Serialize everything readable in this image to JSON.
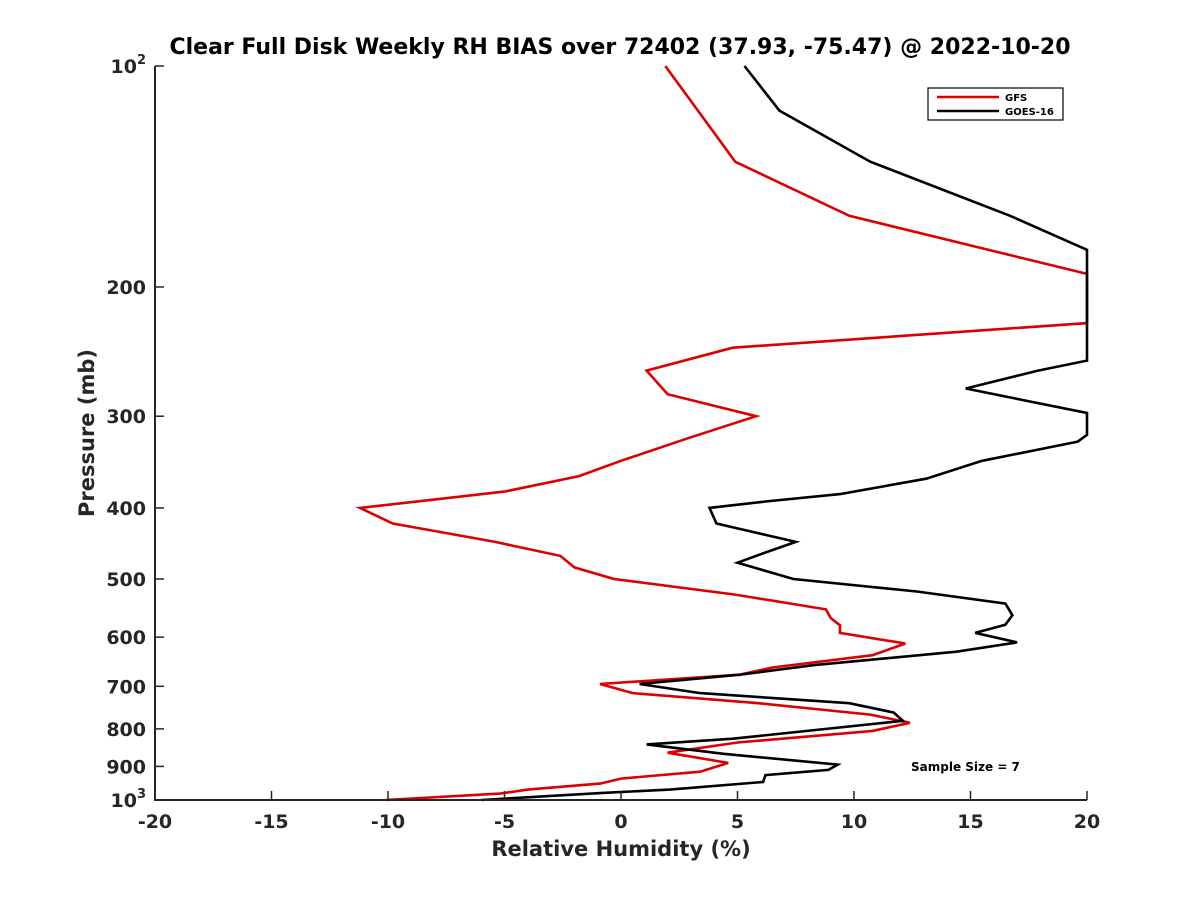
{
  "chart_data": {
    "type": "line",
    "title": "Clear Full Disk Weekly RH BIAS over 72402 (37.93, -75.47) @ 2022-10-20",
    "xlabel": "Relative Humidity (%)",
    "ylabel": "Pressure (mb)",
    "xlim": [
      -20,
      20
    ],
    "ylim": [
      100,
      1000
    ],
    "y_scale": "log",
    "y_reversed": true,
    "x_ticks": [
      "-20",
      "-15",
      "-10",
      "-5",
      "0",
      "5",
      "10",
      "15",
      "20"
    ],
    "y_ticks": [
      {
        "value": 100,
        "base": "10",
        "exp": "2"
      },
      {
        "value": 200,
        "label": "200"
      },
      {
        "value": 300,
        "label": "300"
      },
      {
        "value": 400,
        "label": "400"
      },
      {
        "value": 500,
        "label": "500"
      },
      {
        "value": 600,
        "label": "600"
      },
      {
        "value": 700,
        "label": "700"
      },
      {
        "value": 800,
        "label": "800"
      },
      {
        "value": 900,
        "label": "900"
      },
      {
        "value": 1000,
        "base": "10",
        "exp": "3"
      }
    ],
    "grid": false,
    "legend_position": "top-right",
    "annotation": "Sample Size = 7",
    "series": [
      {
        "name": "GFS",
        "color": "#dd0000",
        "points": [
          [
            1.9,
            100
          ],
          [
            3.3,
            115
          ],
          [
            4.9,
            135
          ],
          [
            9.8,
            160
          ],
          [
            20,
            192
          ],
          [
            20,
            224
          ],
          [
            4.8,
            242
          ],
          [
            1.1,
            260
          ],
          [
            2.0,
            280
          ],
          [
            5.8,
            300
          ],
          [
            2.8,
            322
          ],
          [
            0.0,
            345
          ],
          [
            -1.8,
            362
          ],
          [
            -5.0,
            380
          ],
          [
            -11.2,
            400
          ],
          [
            -9.8,
            420
          ],
          [
            -5.4,
            445
          ],
          [
            -2.6,
            465
          ],
          [
            -2.0,
            482
          ],
          [
            -0.3,
            500
          ],
          [
            4.9,
            525
          ],
          [
            8.8,
            550
          ],
          [
            9.0,
            565
          ],
          [
            9.4,
            578
          ],
          [
            9.4,
            592
          ],
          [
            12.2,
            612
          ],
          [
            10.8,
            635
          ],
          [
            6.5,
            660
          ],
          [
            5.1,
            675
          ],
          [
            -0.9,
            695
          ],
          [
            0.5,
            715
          ],
          [
            5.9,
            738
          ],
          [
            10.7,
            765
          ],
          [
            12.4,
            785
          ],
          [
            10.8,
            805
          ],
          [
            5.0,
            835
          ],
          [
            2.0,
            862
          ],
          [
            4.6,
            890
          ],
          [
            3.4,
            915
          ],
          [
            0.0,
            935
          ],
          [
            -0.9,
            950
          ],
          [
            -4.0,
            968
          ],
          [
            -5.2,
            980
          ],
          [
            -10.1,
            1000
          ]
        ]
      },
      {
        "name": "GOES-16",
        "color": "#000000",
        "points": [
          [
            5.3,
            100
          ],
          [
            6.8,
            115
          ],
          [
            10.7,
            135
          ],
          [
            16.7,
            160
          ],
          [
            20,
            178
          ],
          [
            20,
            252
          ],
          [
            17.9,
            260
          ],
          [
            14.8,
            275
          ],
          [
            20,
            297
          ],
          [
            20,
            318
          ],
          [
            19.6,
            325
          ],
          [
            15.5,
            345
          ],
          [
            13.1,
            365
          ],
          [
            9.4,
            383
          ],
          [
            6.2,
            392
          ],
          [
            3.8,
            400
          ],
          [
            4.1,
            420
          ],
          [
            7.5,
            445
          ],
          [
            6.2,
            460
          ],
          [
            5.0,
            475
          ],
          [
            7.4,
            500
          ],
          [
            12.7,
            520
          ],
          [
            16.5,
            540
          ],
          [
            16.8,
            560
          ],
          [
            16.5,
            577
          ],
          [
            15.2,
            592
          ],
          [
            17.0,
            610
          ],
          [
            14.4,
            628
          ],
          [
            8.3,
            655
          ],
          [
            5.1,
            675
          ],
          [
            0.8,
            695
          ],
          [
            3.4,
            715
          ],
          [
            9.8,
            738
          ],
          [
            11.7,
            760
          ],
          [
            12.1,
            780
          ],
          [
            4.8,
            825
          ],
          [
            1.1,
            840
          ],
          [
            4.4,
            865
          ],
          [
            9.3,
            895
          ],
          [
            8.9,
            910
          ],
          [
            6.2,
            925
          ],
          [
            6.1,
            945
          ],
          [
            2.1,
            968
          ],
          [
            -0.8,
            978
          ],
          [
            -6.0,
            1000
          ]
        ]
      }
    ]
  }
}
